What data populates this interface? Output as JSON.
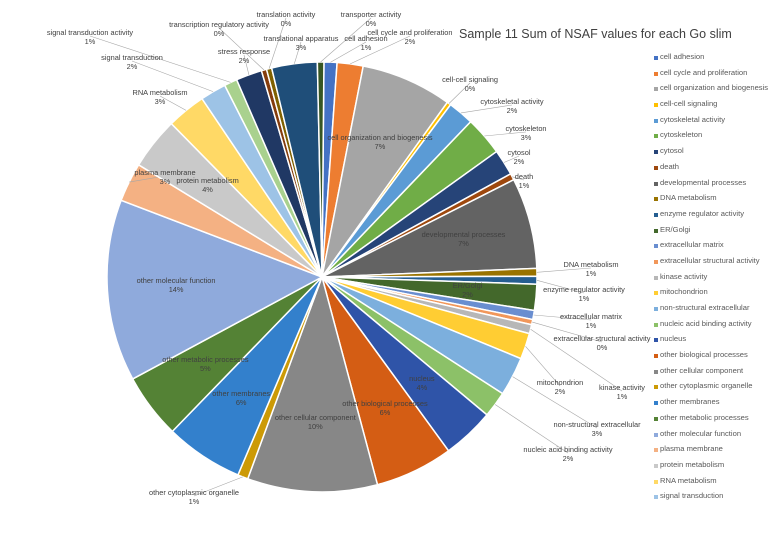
{
  "chart_data": {
    "type": "pie",
    "title": "Sample 11 Sum of NSAF values for each Go slim",
    "legend_position": "right",
    "slices": [
      {
        "label": "cell adhesion",
        "value": 1,
        "pct_label": "1%",
        "color": "#4472C4"
      },
      {
        "label": "cell cycle and proliferation",
        "value": 2,
        "pct_label": "2%",
        "color": "#ED7D31"
      },
      {
        "label": "cell organization and biogenesis",
        "value": 7,
        "pct_label": "7%",
        "color": "#A5A5A5"
      },
      {
        "label": "cell-cell signaling",
        "value": 0.3,
        "pct_label": "0%",
        "color": "#FFC000"
      },
      {
        "label": "cytoskeletal activity",
        "value": 2,
        "pct_label": "2%",
        "color": "#5B9BD5"
      },
      {
        "label": "cytoskeleton",
        "value": 3,
        "pct_label": "3%",
        "color": "#70AD47"
      },
      {
        "label": "cytosol",
        "value": 2,
        "pct_label": "2%",
        "color": "#264478"
      },
      {
        "label": "death",
        "value": 0.5,
        "pct_label": "1%",
        "color": "#9E480E"
      },
      {
        "label": "developmental processes",
        "value": 7,
        "pct_label": "7%",
        "color": "#636363"
      },
      {
        "label": "DNA metabolism",
        "value": 0.6,
        "pct_label": "1%",
        "color": "#997300"
      },
      {
        "label": "enzyme regulator activity",
        "value": 0.6,
        "pct_label": "1%",
        "color": "#255E91"
      },
      {
        "label": "ER/Golgi",
        "value": 2,
        "pct_label": "2%",
        "color": "#43682B"
      },
      {
        "label": "extracellular matrix",
        "value": 0.7,
        "pct_label": "1%",
        "color": "#698ED0"
      },
      {
        "label": "extracellular structural activity",
        "value": 0.4,
        "pct_label": "0%",
        "color": "#F1975A"
      },
      {
        "label": "kinase activity",
        "value": 0.7,
        "pct_label": "1%",
        "color": "#B7B7B7"
      },
      {
        "label": "mitochondrion",
        "value": 2,
        "pct_label": "2%",
        "color": "#FFCD33"
      },
      {
        "label": "non-structural extracellular",
        "value": 3,
        "pct_label": "3%",
        "color": "#7CAFDD"
      },
      {
        "label": "nucleic acid binding activity",
        "value": 2,
        "pct_label": "2%",
        "color": "#8CC168"
      },
      {
        "label": "nucleus",
        "value": 4,
        "pct_label": "4%",
        "color": "#2F54A8"
      },
      {
        "label": "other biological processes",
        "value": 6,
        "pct_label": "6%",
        "color": "#D45D14"
      },
      {
        "label": "other cellular component",
        "value": 10,
        "pct_label": "10%",
        "color": "#878787"
      },
      {
        "label": "other cytoplasmic organelle",
        "value": 0.8,
        "pct_label": "1%",
        "color": "#CC9A06"
      },
      {
        "label": "other membranes",
        "value": 6,
        "pct_label": "6%",
        "color": "#3380CC"
      },
      {
        "label": "other metabolic processes",
        "value": 5,
        "pct_label": "5%",
        "color": "#548235"
      },
      {
        "label": "other molecular function",
        "value": 14,
        "pct_label": "14%",
        "color": "#8FAADC"
      },
      {
        "label": "plasma membrane",
        "value": 3,
        "pct_label": "3%",
        "color": "#F4B183"
      },
      {
        "label": "protein metabolism",
        "value": 4,
        "pct_label": "4%",
        "color": "#C9C9C9"
      },
      {
        "label": "RNA metabolism",
        "value": 3,
        "pct_label": "3%",
        "color": "#FFD966"
      },
      {
        "label": "signal transduction",
        "value": 2,
        "pct_label": "2%",
        "color": "#9DC3E6"
      },
      {
        "label": "signal transduction activity",
        "value": 1,
        "pct_label": "1%",
        "color": "#A9D18E"
      },
      {
        "label": "stress response",
        "value": 2,
        "pct_label": "2%",
        "color": "#203864"
      },
      {
        "label": "transcription regulatory activity",
        "value": 0.4,
        "pct_label": "0%",
        "color": "#843C0C"
      },
      {
        "label": "translation activity",
        "value": 0.4,
        "pct_label": "0%",
        "color": "#7F6000"
      },
      {
        "label": "translational apparatus",
        "value": 3.5,
        "pct_label": "3%",
        "color": "#1F4E79"
      },
      {
        "label": "transporter activity",
        "value": 0.5,
        "pct_label": "0%",
        "color": "#375623"
      }
    ]
  }
}
